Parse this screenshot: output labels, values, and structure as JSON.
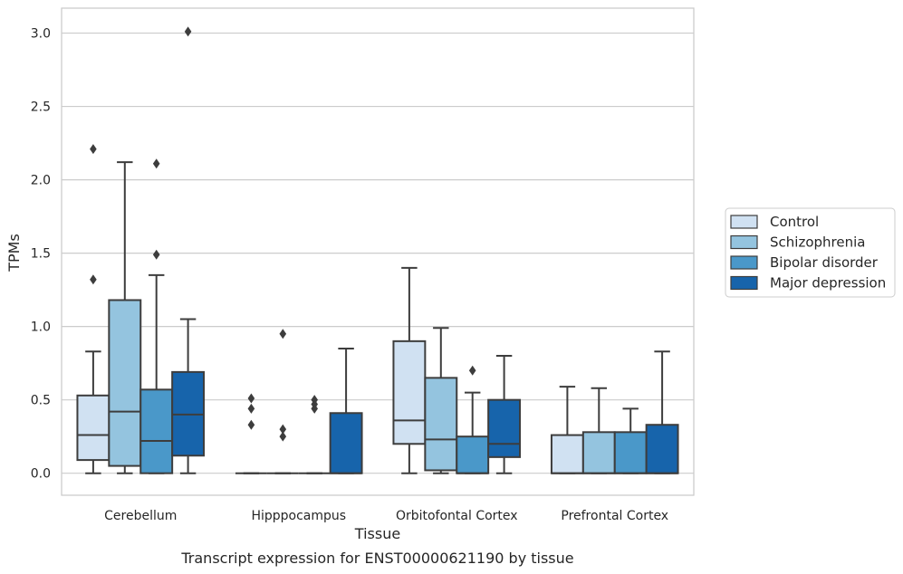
{
  "caption": "Transcript expression for ENST00000621190 by tissue",
  "chart_data": {
    "type": "boxplot",
    "xlabel": "Tissue",
    "ylabel": "TPMs",
    "ylim": [
      -0.15,
      3.17
    ],
    "yticks": [
      0.0,
      0.5,
      1.0,
      1.5,
      2.0,
      2.5,
      3.0
    ],
    "ytick_labels": [
      "0.0",
      "0.5",
      "1.0",
      "1.5",
      "2.0",
      "2.5",
      "3.0"
    ],
    "grid": "horizontal",
    "legend_position": "right",
    "categories": [
      "Cerebellum",
      "Hipppocampus",
      "Orbitofontal Cortex",
      "Prefrontal Cortex"
    ],
    "series": [
      {
        "name": "Control",
        "color": "#d0e1f2",
        "boxes": [
          {
            "whislo": 0.0,
            "q1": 0.09,
            "med": 0.26,
            "q3": 0.53,
            "whishi": 0.83,
            "fliers": [
              1.32,
              2.21
            ]
          },
          {
            "whislo": 0.0,
            "q1": 0.0,
            "med": 0.0,
            "q3": 0.0,
            "whishi": 0.0,
            "fliers": [
              0.33,
              0.44,
              0.51
            ]
          },
          {
            "whislo": 0.0,
            "q1": 0.2,
            "med": 0.36,
            "q3": 0.9,
            "whishi": 1.4,
            "fliers": []
          },
          {
            "whislo": 0.0,
            "q1": 0.0,
            "med": 0.0,
            "q3": 0.26,
            "whishi": 0.59,
            "fliers": []
          }
        ]
      },
      {
        "name": "Schizophrenia",
        "color": "#94c4df",
        "boxes": [
          {
            "whislo": 0.0,
            "q1": 0.05,
            "med": 0.42,
            "q3": 1.18,
            "whishi": 2.12,
            "fliers": []
          },
          {
            "whislo": 0.0,
            "q1": 0.0,
            "med": 0.0,
            "q3": 0.0,
            "whishi": 0.0,
            "fliers": [
              0.25,
              0.3,
              0.95
            ]
          },
          {
            "whislo": 0.0,
            "q1": 0.02,
            "med": 0.23,
            "q3": 0.65,
            "whishi": 0.99,
            "fliers": []
          },
          {
            "whislo": 0.0,
            "q1": 0.0,
            "med": 0.0,
            "q3": 0.28,
            "whishi": 0.58,
            "fliers": []
          }
        ]
      },
      {
        "name": "Bipolar disorder",
        "color": "#4a98c9",
        "boxes": [
          {
            "whislo": 0.0,
            "q1": 0.0,
            "med": 0.22,
            "q3": 0.57,
            "whishi": 1.35,
            "fliers": [
              1.49,
              2.11
            ]
          },
          {
            "whislo": 0.0,
            "q1": 0.0,
            "med": 0.0,
            "q3": 0.0,
            "whishi": 0.0,
            "fliers": [
              0.44,
              0.47,
              0.5
            ]
          },
          {
            "whislo": 0.0,
            "q1": 0.0,
            "med": 0.0,
            "q3": 0.25,
            "whishi": 0.55,
            "fliers": [
              0.7
            ]
          },
          {
            "whislo": 0.0,
            "q1": 0.0,
            "med": 0.0,
            "q3": 0.28,
            "whishi": 0.44,
            "fliers": []
          }
        ]
      },
      {
        "name": "Major depression",
        "color": "#1764ab",
        "boxes": [
          {
            "whislo": 0.0,
            "q1": 0.12,
            "med": 0.4,
            "q3": 0.69,
            "whishi": 1.05,
            "fliers": [
              3.01
            ]
          },
          {
            "whislo": 0.0,
            "q1": 0.0,
            "med": 0.0,
            "q3": 0.41,
            "whishi": 0.85,
            "fliers": []
          },
          {
            "whislo": 0.0,
            "q1": 0.11,
            "med": 0.2,
            "q3": 0.5,
            "whishi": 0.8,
            "fliers": []
          },
          {
            "whislo": 0.0,
            "q1": 0.0,
            "med": 0.0,
            "q3": 0.33,
            "whishi": 0.83,
            "fliers": []
          }
        ]
      }
    ]
  }
}
